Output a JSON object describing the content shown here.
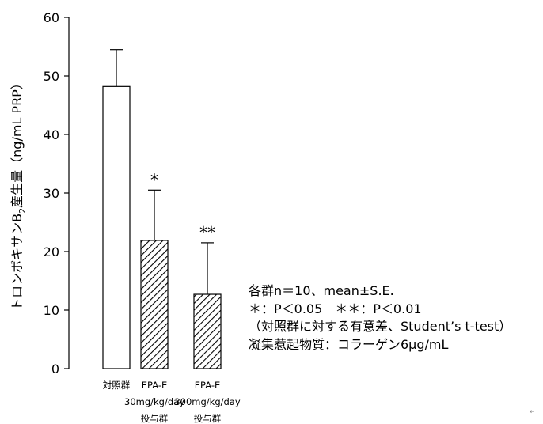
{
  "chart_data": {
    "type": "bar",
    "title": "",
    "xlabel": "",
    "ylabel": "トロンボキサンB2産生量（ng/mL PRP）",
    "ylabel_main": "トロンボキサンB",
    "ylabel_sub": "2",
    "ylabel_rest": "産生量（ng/mL PRP）",
    "ylim": [
      0,
      60
    ],
    "yticks": [
      "0",
      "10",
      "20",
      "30",
      "40",
      "50",
      "60"
    ],
    "categories": [
      {
        "lines": [
          "対照群"
        ]
      },
      {
        "lines": [
          "EPA-E",
          "30mg/kg/day",
          "投与群"
        ]
      },
      {
        "lines": [
          "EPA-E",
          "300mg/kg/day",
          "投与群"
        ]
      }
    ],
    "values": [
      48.2,
      21.9,
      12.7
    ],
    "errors": [
      6.3,
      8.6,
      8.8
    ],
    "significance": [
      "",
      "*",
      "**"
    ],
    "fills": [
      "white",
      "hatched",
      "hatched"
    ],
    "grid": false,
    "legend": "none"
  },
  "notes": [
    "各群n＝10、mean±S.E.",
    "＊：P＜0.05　＊＊：P＜0.01",
    "（対照群に対する有意差、Student’s t-test）",
    "凝集惹起物質：コラーゲン6μg/mL"
  ],
  "corner_mark": "↵"
}
